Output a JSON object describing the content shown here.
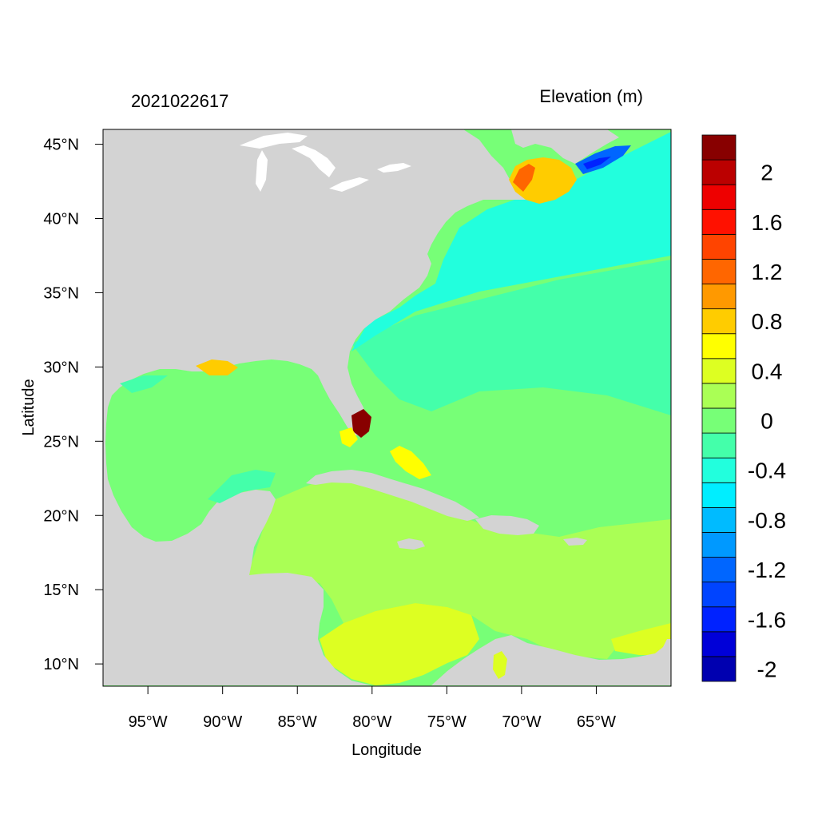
{
  "header": {
    "timestamp": "2021022617",
    "variable": "Elevation (m)"
  },
  "axes": {
    "x_label": "Longitude",
    "y_label": "Latitude",
    "lon_range": [
      -98,
      -60
    ],
    "lat_range": [
      8.5,
      46
    ],
    "x_ticks": [
      {
        "value": -95,
        "label": "95°W"
      },
      {
        "value": -90,
        "label": "90°W"
      },
      {
        "value": -85,
        "label": "85°W"
      },
      {
        "value": -80,
        "label": "80°W"
      },
      {
        "value": -75,
        "label": "75°W"
      },
      {
        "value": -70,
        "label": "70°W"
      },
      {
        "value": -65,
        "label": "65°W"
      }
    ],
    "y_ticks": [
      {
        "value": 45,
        "label": "45°N"
      },
      {
        "value": 40,
        "label": "40°N"
      },
      {
        "value": 35,
        "label": "35°N"
      },
      {
        "value": 30,
        "label": "30°N"
      },
      {
        "value": 25,
        "label": "25°N"
      },
      {
        "value": 20,
        "label": "20°N"
      },
      {
        "value": 15,
        "label": "15°N"
      },
      {
        "value": 10,
        "label": "10°N"
      }
    ]
  },
  "colorbar": {
    "colors": [
      "#0000b0",
      "#0000d8",
      "#0022ff",
      "#0044ff",
      "#0066ff",
      "#0099ff",
      "#00bbff",
      "#00eeff",
      "#22ffdd",
      "#44ffaa",
      "#77ff77",
      "#aaff55",
      "#ddff22",
      "#ffff00",
      "#ffcc00",
      "#ff9900",
      "#ff6600",
      "#ff4400",
      "#ff1100",
      "#ee0000",
      "#bb0000",
      "#880000"
    ],
    "labels": [
      {
        "value": 2,
        "label": "2"
      },
      {
        "value": 1.6,
        "label": "1.6"
      },
      {
        "value": 1.2,
        "label": "1.2"
      },
      {
        "value": 0.8,
        "label": "0.8"
      },
      {
        "value": 0.4,
        "label": "0.4"
      },
      {
        "value": 0,
        "label": "0"
      },
      {
        "value": -0.4,
        "label": "-0.4"
      },
      {
        "value": -0.8,
        "label": "-0.8"
      },
      {
        "value": -1.2,
        "label": "-1.2"
      },
      {
        "value": -1.6,
        "label": "-1.6"
      },
      {
        "value": -2,
        "label": "-2"
      }
    ]
  },
  "map_colors": {
    "land": "#d3d3d3",
    "lake": "#ffffff",
    "gulf": "#77ff77",
    "caribbean": "#aaff55",
    "south_caribbean": "#ddff22",
    "shelf": "#22ffdd",
    "atlantic_mid": "#44ffaa",
    "atlantic_east": "#77ff77",
    "gulf_of_maine": "#ffcc00",
    "bay_of_fundy": "#ff6600",
    "nova_scotia_low": "#0066ff",
    "surge_high": "#880000",
    "surge_mid": "#ffff00"
  }
}
